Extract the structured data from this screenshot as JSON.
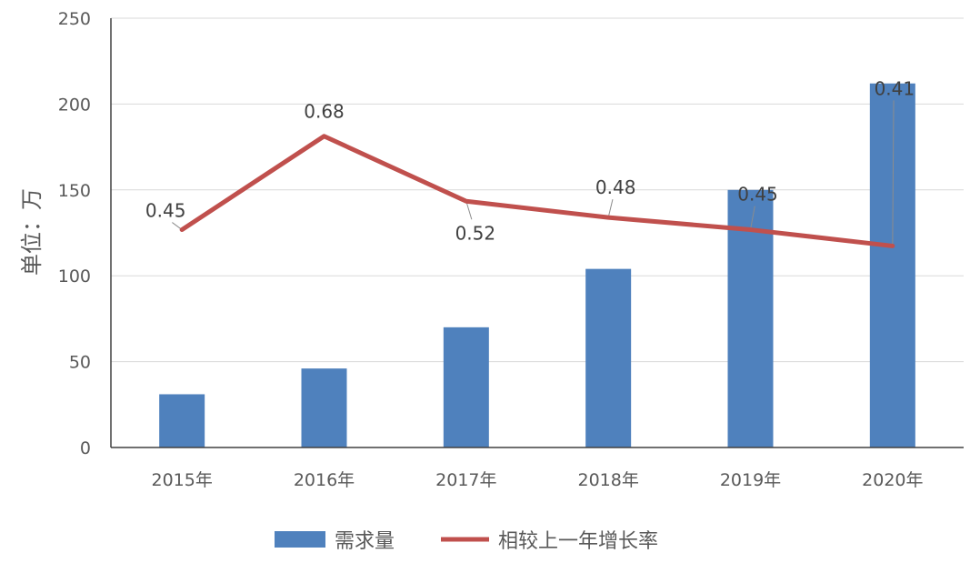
{
  "chart_data": {
    "type": "bar",
    "categories": [
      "2015年",
      "2016年",
      "2017年",
      "2018年",
      "2019年",
      "2020年"
    ],
    "ylabel": "单位：万",
    "ylim": [
      0,
      250
    ],
    "yticks": [
      0,
      50,
      100,
      150,
      200,
      250
    ],
    "grid": true,
    "legend_position": "bottom",
    "series": [
      {
        "name": "需求量",
        "kind": "bar",
        "color": "#4f81bd",
        "values": [
          31,
          46,
          70,
          104,
          150,
          212
        ]
      },
      {
        "name": "相较上一年增长率",
        "kind": "line",
        "color": "#c0504d",
        "values": [
          0.45,
          0.68,
          0.52,
          0.48,
          0.45,
          0.41
        ],
        "labels": [
          "0.45",
          "0.68",
          "0.52",
          "0.48",
          "0.45",
          "0.41"
        ]
      }
    ]
  }
}
